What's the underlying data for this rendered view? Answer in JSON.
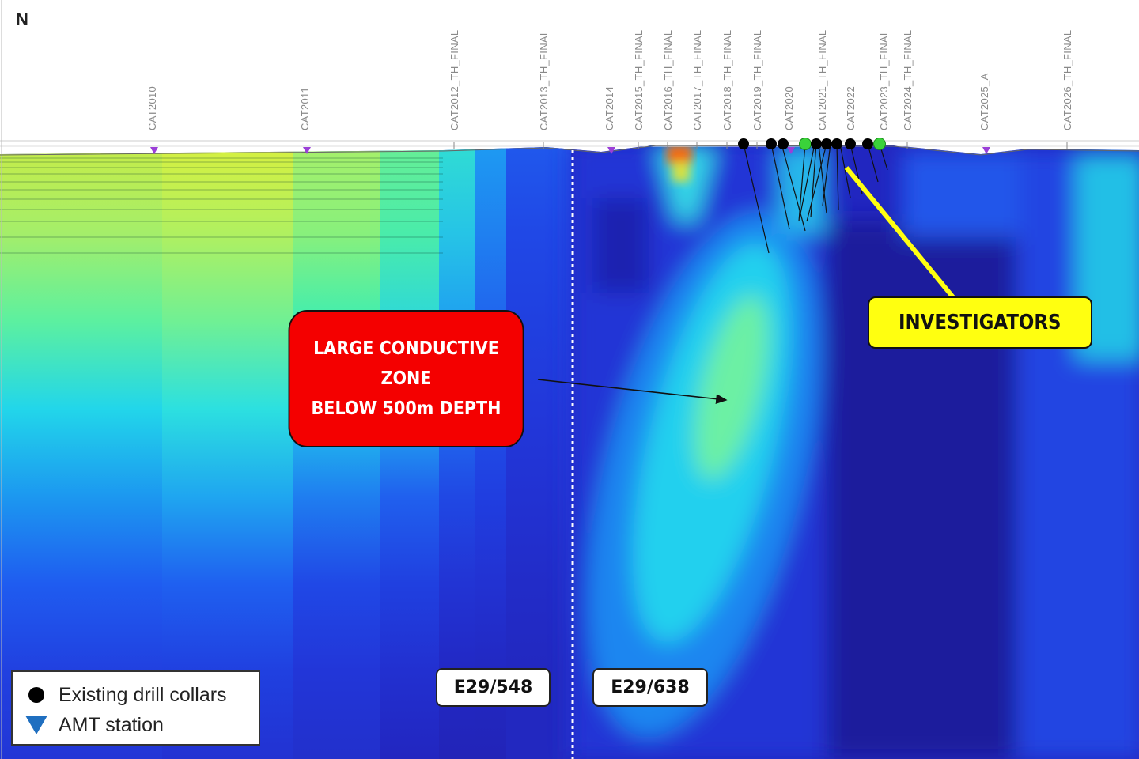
{
  "north_label": "N",
  "stations": [
    {
      "label": "CAT2010",
      "amt": true
    },
    {
      "label": "CAT2011",
      "amt": true
    },
    {
      "label": "CAT2012_TH_FINAL",
      "amt": false
    },
    {
      "label": "CAT2013_TH_FINAL",
      "amt": false
    },
    {
      "label": "CAT2014",
      "amt": true
    },
    {
      "label": "CAT2015_TH_FINAL",
      "amt": false
    },
    {
      "label": "CAT2016_TH_FINAL",
      "amt": false
    },
    {
      "label": "CAT2017_TH_FINAL",
      "amt": false
    },
    {
      "label": "CAT2018_TH_FINAL",
      "amt": false
    },
    {
      "label": "CAT2019_TH_FINAL",
      "amt": false
    },
    {
      "label": "CAT2020",
      "amt": true
    },
    {
      "label": "CAT2021_TH_FINAL",
      "amt": false
    },
    {
      "label": "CAT2022",
      "amt": false
    },
    {
      "label": "CAT2023_TH_FINAL",
      "amt": false
    },
    {
      "label": "CAT2024_TH_FINAL",
      "amt": false
    },
    {
      "label": "CAT2025_A",
      "amt": true
    },
    {
      "label": "CAT2026_TH_FINAL",
      "amt": false
    }
  ],
  "callouts": {
    "conductive_zone": {
      "line1": "LARGE CONDUCTIVE",
      "line2": "ZONE",
      "line3": "BELOW 500m DEPTH",
      "color": "#f40000"
    },
    "investigators": {
      "label": "INVESTIGATORS",
      "color": "#ffff10"
    }
  },
  "tenements": {
    "left": "E29/548",
    "right": "E29/638"
  },
  "legend": {
    "items": [
      {
        "label": "Existing drill collars",
        "icon": "black-circle"
      },
      {
        "label": "AMT station",
        "icon": "blue-down-triangle"
      }
    ]
  },
  "colors": {
    "amt_marker": "#9b3fd8",
    "drill_collar": "#000000",
    "drill_collar_highlight": "#3ad23a",
    "boundary_line": "#ffffff"
  }
}
